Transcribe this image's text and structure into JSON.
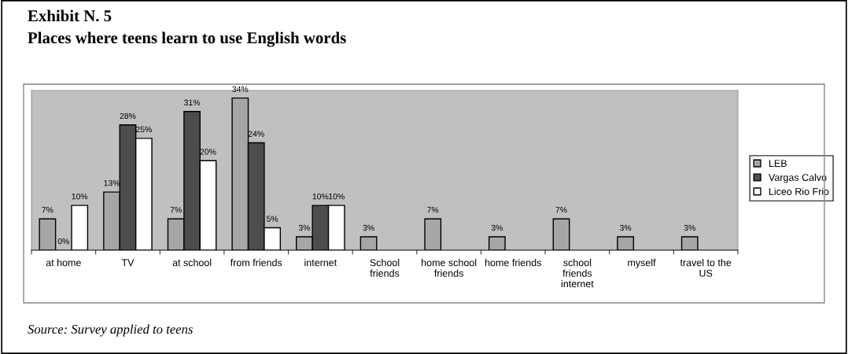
{
  "chart_data": {
    "type": "bar",
    "title": "Exhibit N. 5",
    "subtitle": "Places where teens learn to use English words",
    "categories": [
      "at home",
      "TV",
      "at school",
      "from friends",
      "internet",
      "School\nfriends",
      "home school\nfriends",
      "home friends",
      "school\nfriends\ninternet",
      "myself",
      "travel to the\nUS"
    ],
    "series": [
      {
        "name": "LEB",
        "color": "#a6a6a6",
        "values": [
          7,
          13,
          7,
          34,
          3,
          3,
          7,
          3,
          7,
          3,
          3
        ],
        "value_labels": [
          "7%",
          "13%",
          "7%",
          "34%",
          "3%",
          "3%",
          "7%",
          "3%",
          "7%",
          "3%",
          "3%"
        ]
      },
      {
        "name": "Vargas Calvo",
        "color": "#4d4d4d",
        "values": [
          0,
          28,
          31,
          24,
          10,
          null,
          null,
          null,
          null,
          null,
          null
        ],
        "value_labels": [
          "0%",
          "28%",
          "31%",
          "24%",
          "10%",
          null,
          null,
          null,
          null,
          null,
          null
        ]
      },
      {
        "name": "Liceo Rio Frio",
        "color": "#ffffff",
        "values": [
          10,
          25,
          20,
          5,
          10,
          null,
          null,
          null,
          null,
          null,
          null
        ],
        "value_labels": [
          "10%",
          "25%",
          "20%",
          "5%",
          "10%",
          null,
          null,
          null,
          null,
          null,
          null
        ]
      }
    ],
    "legend": "right",
    "grid": false,
    "annotations": [
      "Source: Survey applied to teens"
    ]
  }
}
